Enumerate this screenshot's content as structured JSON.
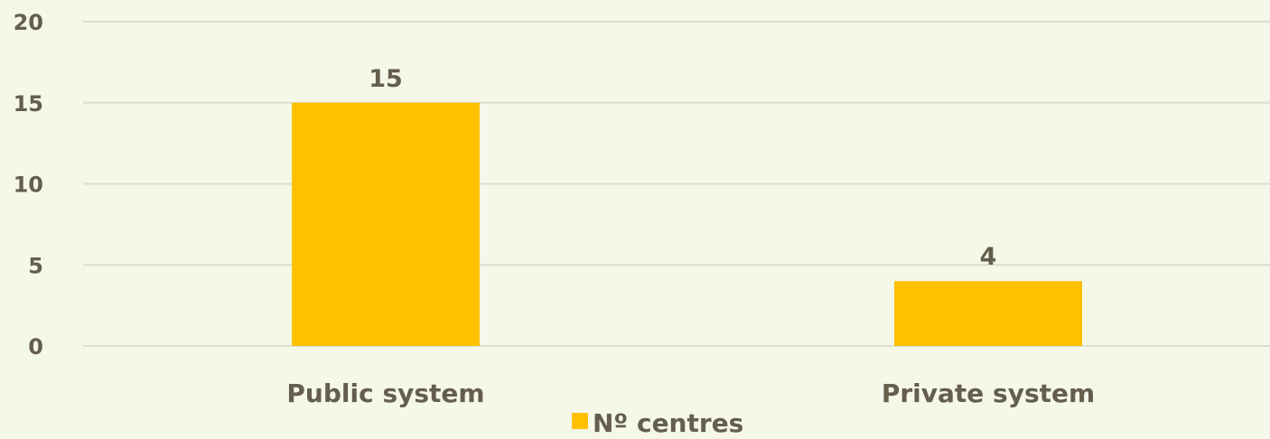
{
  "chart_data": {
    "type": "bar",
    "categories": [
      "Public system",
      "Private system"
    ],
    "series": [
      {
        "name": "Nº centres",
        "values": [
          15,
          4
        ]
      }
    ],
    "data_labels": [
      "15",
      "4"
    ],
    "ylim": [
      0,
      20
    ],
    "yticks": [
      0,
      5,
      10,
      15,
      20
    ],
    "ytick_labels": [
      "0",
      "5",
      "10",
      "15",
      "20"
    ],
    "grid": true,
    "legend": {
      "position": "bottom",
      "label": "Nº centres"
    },
    "colors": {
      "bar": "#ffc000",
      "text": "#645e4c",
      "grid": "#dcdecf",
      "background": "#f5f7e9"
    }
  }
}
